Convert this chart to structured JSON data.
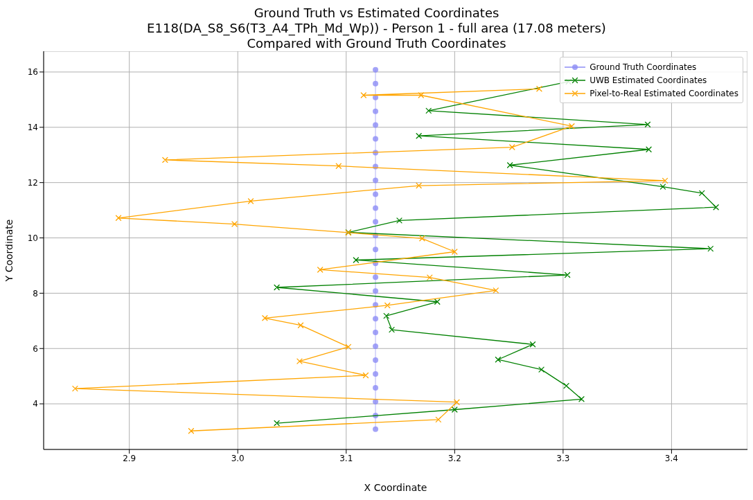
{
  "chart_data": {
    "type": "line",
    "title": "Ground Truth vs Estimated Coordinates\nE118(DA_S8_S6(T3_A4_TPh_Md_Wp)) - Person 1 - full area (17.08 meters)\nCompared with Ground Truth Coordinates",
    "xlabel": "X Coordinate",
    "ylabel": "Y Coordinate",
    "xlim": [
      2.821,
      3.47
    ],
    "xticks": [
      2.9,
      {
        "value": 3,
        "label": "3.0"
      },
      3.1,
      3.2,
      3.3,
      3.4
    ],
    "ylim": [
      2.35,
      16.75
    ],
    "yticks": [
      4,
      6,
      8,
      10,
      12,
      14,
      16
    ],
    "grid": true,
    "legend": "top right",
    "series": [
      {
        "name": "Ground Truth Coordinates",
        "color": "#8c8cf5",
        "marker": "circle",
        "x": [
          3.127,
          3.127,
          3.127,
          3.127,
          3.127,
          3.127,
          3.127,
          3.127,
          3.127,
          3.127,
          3.127,
          3.127,
          3.127,
          3.127,
          3.127,
          3.127,
          3.127,
          3.127,
          3.127,
          3.127,
          3.127,
          3.127,
          3.127,
          3.127,
          3.127,
          3.127,
          3.127
        ],
        "values": [
          3.08,
          3.58,
          4.08,
          4.58,
          5.08,
          5.58,
          6.08,
          6.58,
          7.08,
          7.58,
          8.08,
          8.58,
          9.08,
          9.58,
          10.08,
          10.58,
          11.08,
          11.58,
          12.08,
          12.58,
          13.08,
          13.58,
          14.08,
          14.58,
          15.08,
          15.58,
          16.08
        ]
      },
      {
        "name": "UWB Estimated Coordinates",
        "color": "#008000",
        "marker": "cross",
        "x": [
          3.036,
          3.2,
          3.317,
          3.303,
          3.28,
          3.24,
          3.272,
          3.142,
          3.137,
          3.184,
          3.036,
          3.304,
          3.109,
          3.436,
          3.102,
          3.149,
          3.441,
          3.428,
          3.392,
          3.251,
          3.379,
          3.167,
          3.378,
          3.176,
          3.305
        ],
        "values": [
          3.3,
          3.79,
          4.17,
          4.65,
          5.24,
          5.6,
          6.15,
          6.68,
          7.18,
          7.69,
          8.21,
          8.66,
          9.2,
          9.61,
          10.2,
          10.63,
          11.11,
          11.62,
          11.85,
          12.63,
          13.2,
          13.69,
          14.1,
          14.6,
          15.65
        ]
      },
      {
        "name": "Pixel-to-Real Estimated Coordinates",
        "color": "#ffa500",
        "marker": "cross",
        "x": [
          2.957,
          3.185,
          3.202,
          2.85,
          3.118,
          3.057,
          3.102,
          3.058,
          3.025,
          3.138,
          3.238,
          3.177,
          3.076,
          3.2,
          3.17,
          3.102,
          2.997,
          2.89,
          3.012,
          3.167,
          3.394,
          3.093,
          2.933,
          3.253,
          3.308,
          3.169,
          3.116,
          3.278
        ],
        "values": [
          3.02,
          3.43,
          4.06,
          4.55,
          5.03,
          5.54,
          6.06,
          6.84,
          7.1,
          7.56,
          8.1,
          8.57,
          8.85,
          9.5,
          9.98,
          10.19,
          10.5,
          10.72,
          11.33,
          11.89,
          12.07,
          12.6,
          12.82,
          13.28,
          14.04,
          15.16,
          15.16,
          15.39
        ]
      }
    ]
  }
}
